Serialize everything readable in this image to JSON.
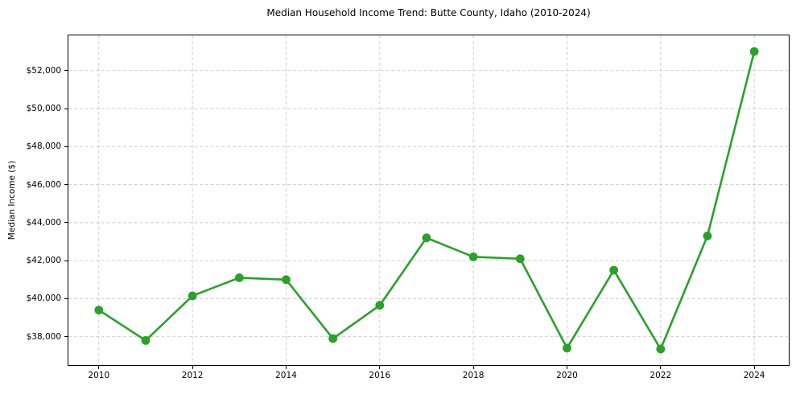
{
  "chart_data": {
    "type": "line",
    "title": "Median Household Income Trend: Butte County, Idaho (2010-2024)",
    "xlabel": "",
    "ylabel": "Median Income ($)",
    "x": [
      2010,
      2011,
      2012,
      2013,
      2014,
      2015,
      2016,
      2017,
      2018,
      2019,
      2020,
      2021,
      2022,
      2023,
      2024
    ],
    "values": [
      39400,
      37800,
      40150,
      41100,
      41000,
      37900,
      39650,
      43200,
      42200,
      42100,
      37400,
      41500,
      37350,
      43300,
      53000
    ],
    "series": [
      {
        "name": "Median Household Income",
        "values": [
          39400,
          37800,
          40150,
          41100,
          41000,
          37900,
          39650,
          43200,
          42200,
          42100,
          37400,
          41500,
          37350,
          43300,
          53000
        ]
      }
    ],
    "xticks": [
      2010,
      2012,
      2014,
      2016,
      2018,
      2020,
      2022,
      2024
    ],
    "xtick_labels": [
      "2010",
      "2012",
      "2014",
      "2016",
      "2018",
      "2020",
      "2022",
      "2024"
    ],
    "yticks": [
      38000,
      40000,
      42000,
      44000,
      46000,
      48000,
      50000,
      52000
    ],
    "ytick_labels": [
      "$38,000",
      "$40,000",
      "$42,000",
      "$44,000",
      "$46,000",
      "$48,000",
      "$50,000",
      "$52,000"
    ],
    "xlim": [
      2009.35,
      2024.72
    ],
    "ylim": [
      36550,
      53850
    ],
    "grid": true,
    "grid_style": "dashed",
    "legend": "none",
    "line_color": "#2ca02c",
    "marker_color": "#2ca02c",
    "marker": "circle",
    "grid_color": "#c9c9c9",
    "axis_color": "#000000",
    "text_color": "#000000",
    "background_color": "#ffffff"
  }
}
